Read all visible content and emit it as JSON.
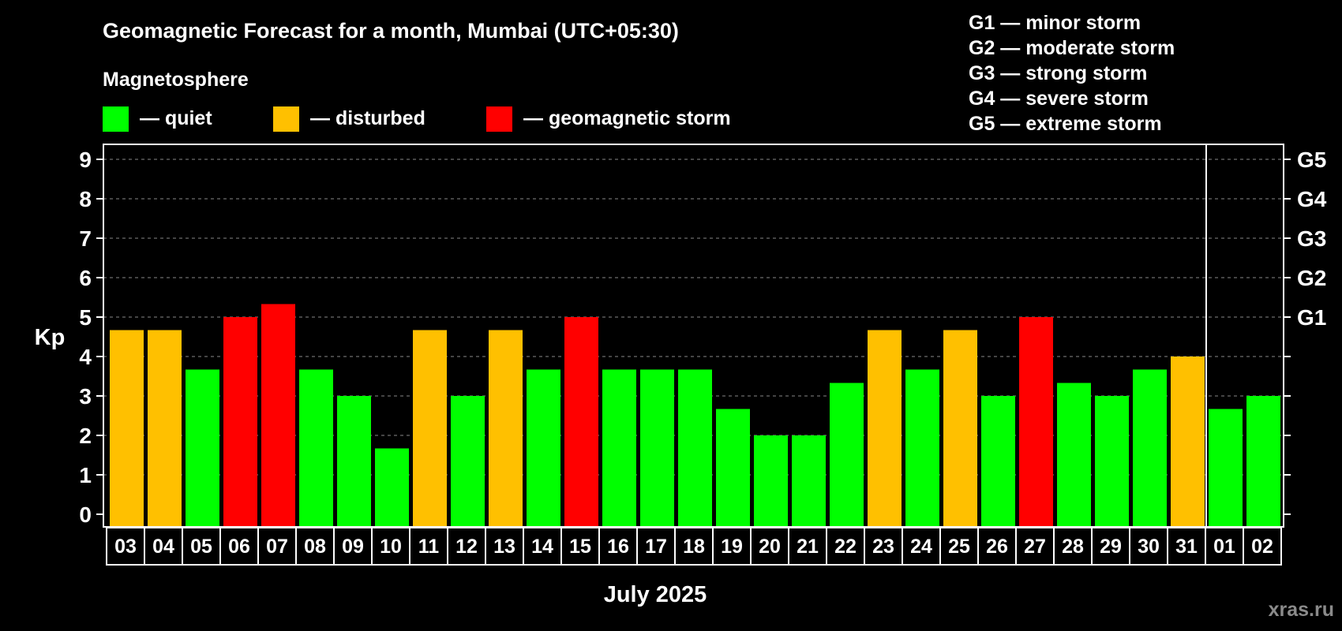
{
  "chart_data": {
    "type": "bar",
    "title": "Geomagnetic Forecast for a month, Mumbai (UTC+05:30)",
    "legend_title": "Magnetosphere",
    "legend": [
      {
        "label": "— quiet",
        "color": "#00ff00"
      },
      {
        "label": "— disturbed",
        "color": "#ffc000"
      },
      {
        "label": "— geomagnetic storm",
        "color": "#ff0000"
      }
    ],
    "storm_scale": [
      "G1 — minor storm",
      "G2 — moderate storm",
      "G3 — strong storm",
      "G4 — severe storm",
      "G5 — extreme storm"
    ],
    "ylabel": "Kp",
    "xlabel": "July 2025",
    "ylim": [
      0,
      9
    ],
    "yticks": [
      "0",
      "1",
      "2",
      "3",
      "4",
      "5",
      "6",
      "7",
      "8",
      "9"
    ],
    "right_axis": [
      {
        "label": "G1",
        "kp": 5
      },
      {
        "label": "G2",
        "kp": 6
      },
      {
        "label": "G3",
        "kp": 7
      },
      {
        "label": "G4",
        "kp": 8
      },
      {
        "label": "G5",
        "kp": 9
      }
    ],
    "grid": "dashed horizontal at each Kp level",
    "month_boundary_after_index": 28,
    "categories": [
      "03",
      "04",
      "05",
      "06",
      "07",
      "08",
      "09",
      "10",
      "11",
      "12",
      "13",
      "14",
      "15",
      "16",
      "17",
      "18",
      "19",
      "20",
      "21",
      "22",
      "23",
      "24",
      "25",
      "26",
      "27",
      "28",
      "29",
      "30",
      "31",
      "01",
      "02"
    ],
    "values": [
      4.67,
      4.67,
      3.67,
      5.0,
      5.33,
      3.67,
      3.0,
      1.67,
      4.67,
      3.0,
      4.67,
      3.67,
      5.0,
      3.67,
      3.67,
      3.67,
      2.67,
      2.0,
      2.0,
      3.33,
      4.67,
      3.67,
      4.67,
      3.0,
      5.0,
      3.33,
      3.0,
      3.67,
      4.0,
      2.67,
      3.0
    ],
    "bar_status": [
      "disturbed",
      "disturbed",
      "quiet",
      "storm",
      "storm",
      "quiet",
      "quiet",
      "quiet",
      "disturbed",
      "quiet",
      "disturbed",
      "quiet",
      "storm",
      "quiet",
      "quiet",
      "quiet",
      "quiet",
      "quiet",
      "quiet",
      "quiet",
      "disturbed",
      "quiet",
      "disturbed",
      "quiet",
      "storm",
      "quiet",
      "quiet",
      "quiet",
      "disturbed",
      "quiet",
      "quiet"
    ],
    "status_colors": {
      "quiet": "#00ff00",
      "disturbed": "#ffc000",
      "storm": "#ff0000"
    }
  },
  "watermark": "xras.ru"
}
